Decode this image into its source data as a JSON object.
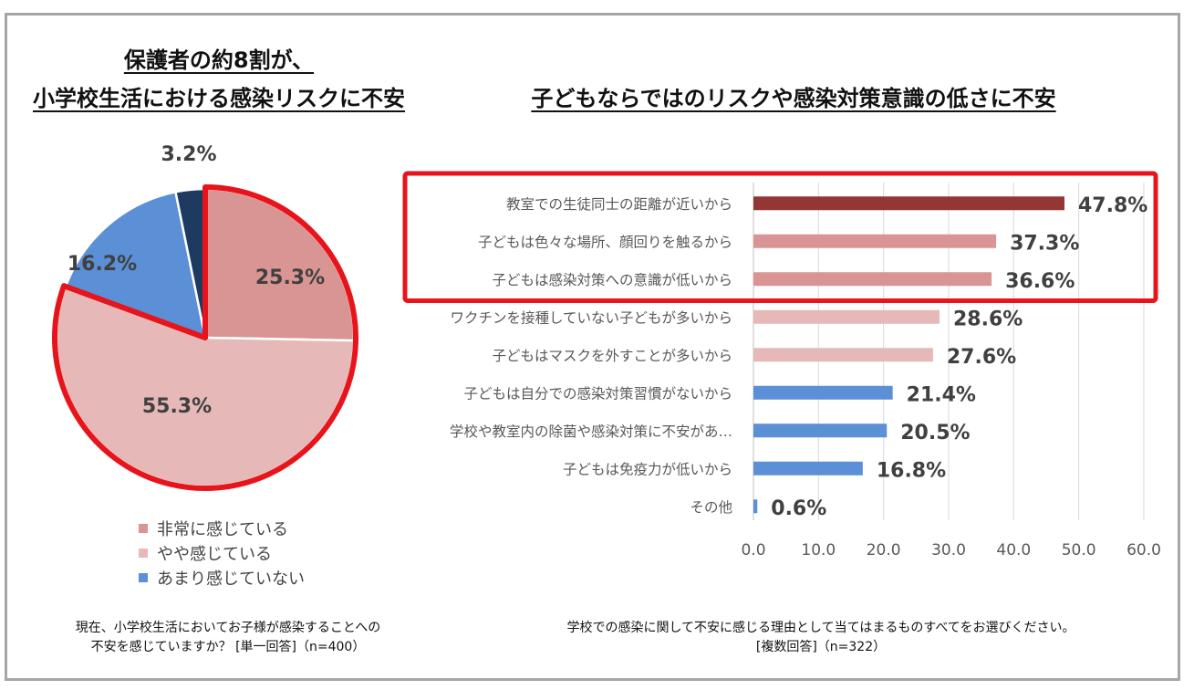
{
  "left": {
    "title_line1": "保護者の約8割が、",
    "title_line2": "小学校生活における感染リスクに不安",
    "question_line1": "現在、小学校生活においてお子様が感染することへの",
    "question_line2": "不安を感じていますか？ [単一回答]（n=400）"
  },
  "right": {
    "title": "子どもならではのリスクや感染対策意識の低さに不安",
    "question_line1": "学校での感染に関して不安に感じる理由として当てはまるものすべてをお選びください。",
    "question_line2": "[複数回答]（n=322）"
  },
  "chart_data": [
    {
      "type": "pie",
      "slices": [
        {
          "label": "非常に感じている",
          "value": 25.3,
          "value_label": "25.3%",
          "color": "#d99594"
        },
        {
          "label": "やや感じている",
          "value": 55.3,
          "value_label": "55.3%",
          "color": "#e6b9b8"
        },
        {
          "label": "あまり感じていない",
          "value": 16.2,
          "value_label": "16.2%",
          "color": "#5b8fd6"
        },
        {
          "label": "",
          "value": 3.2,
          "value_label": "3.2%",
          "color": "#1f3a60"
        }
      ],
      "legend": [
        "非常に感じている",
        "やや感じている",
        "あまり感じていない"
      ],
      "highlight_color": "#e8141b"
    },
    {
      "type": "bar",
      "orientation": "horizontal",
      "categories": [
        "教室での生徒同士の距離が近いから",
        "子どもは色々な場所、顔回りを触るから",
        "子どもは感染対策への意識が低いから",
        "ワクチンを接種していない子どもが多いから",
        "子どもはマスクを外すことが多いから",
        "子どもは自分での感染対策習慣がないから",
        "学校や教室内の除菌や感染対策に不安があ…",
        "子どもは免疫力が低いから",
        "その他"
      ],
      "values": [
        47.8,
        37.3,
        36.6,
        28.6,
        27.6,
        21.4,
        20.5,
        16.8,
        0.6
      ],
      "value_labels": [
        "47.8%",
        "37.3%",
        "36.6%",
        "28.6%",
        "27.6%",
        "21.4%",
        "20.5%",
        "16.8%",
        "0.6%"
      ],
      "colors": [
        "#943634",
        "#d99594",
        "#d99594",
        "#e6b9b8",
        "#e6b9b8",
        "#5b8fd6",
        "#5b8fd6",
        "#5b8fd6",
        "#5b8fd6"
      ],
      "xlim": [
        0,
        60
      ],
      "x_ticks": [
        "0.0",
        "10.0",
        "20.0",
        "30.0",
        "40.0",
        "50.0",
        "60.0"
      ],
      "grid": true,
      "highlight_rows": 3,
      "highlight_color": "#e8141b"
    }
  ]
}
